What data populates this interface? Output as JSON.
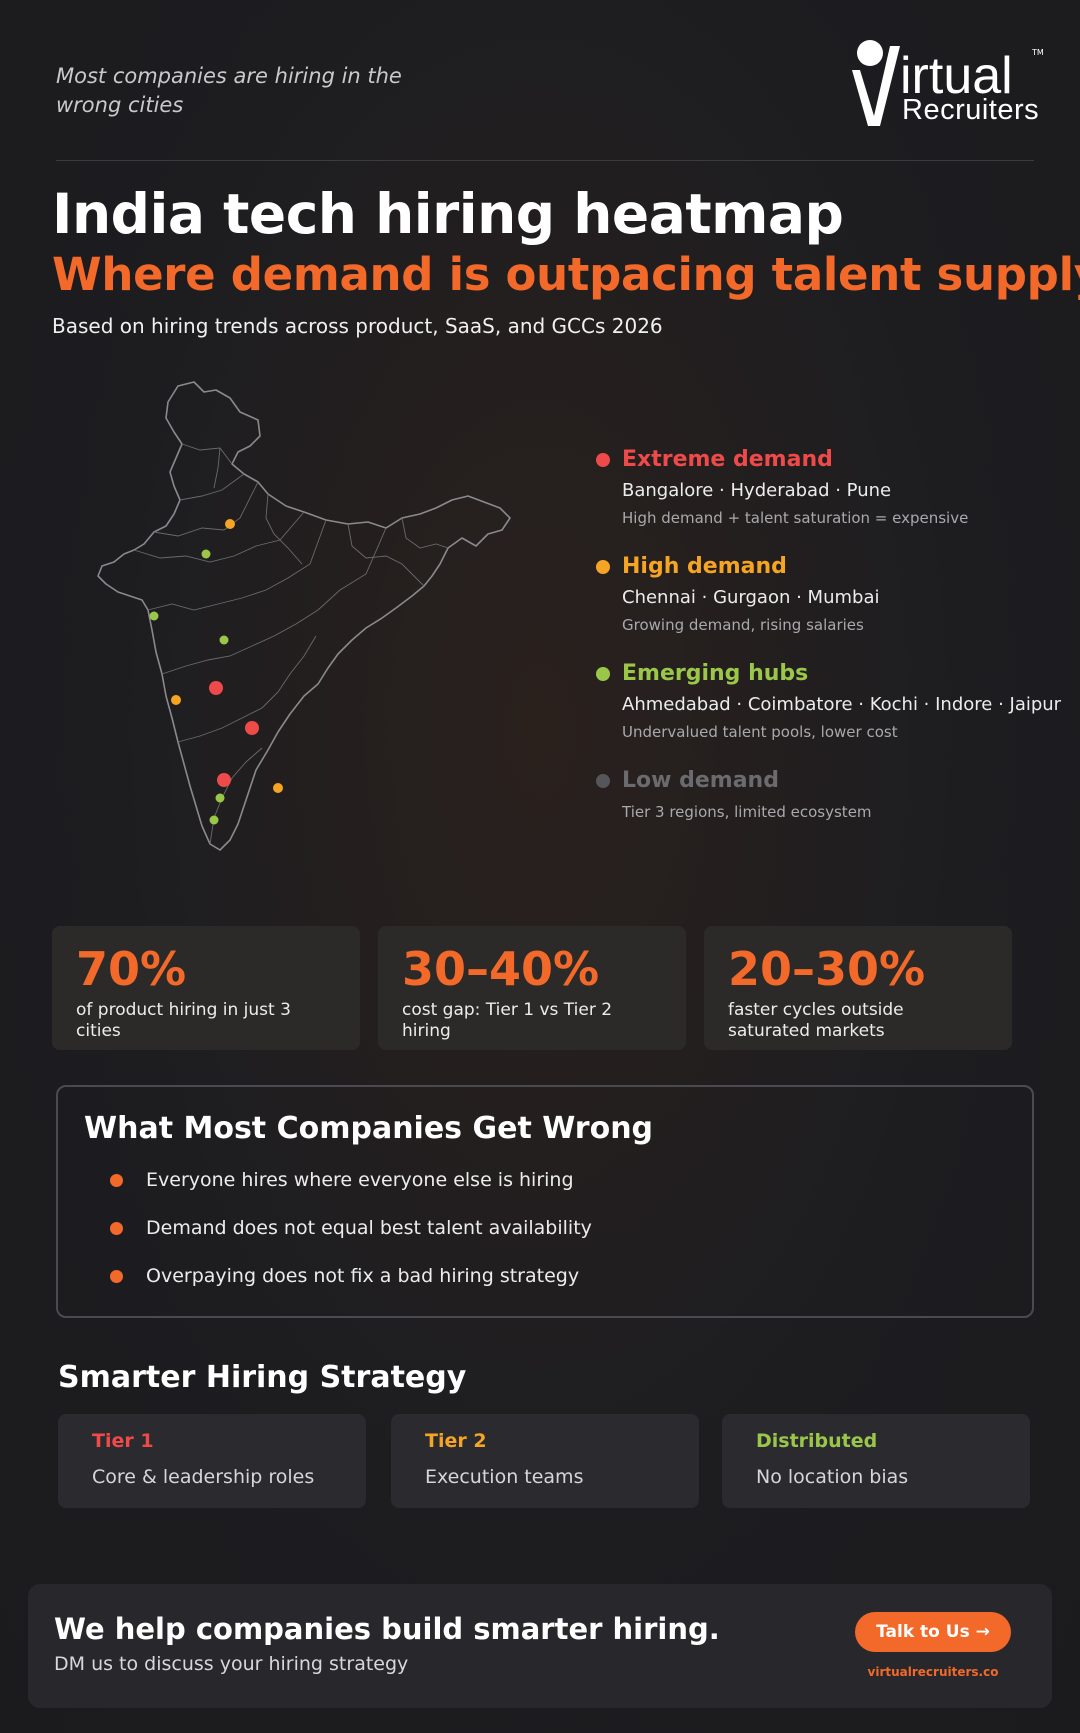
{
  "header": {
    "tagline": "Most companies are hiring in the wrong cities",
    "logo_brand": "irtual",
    "logo_sub": "Recruiters",
    "logo_tm": "TM"
  },
  "hero": {
    "title": "India tech hiring heatmap",
    "subtitle": "Where demand is outpacing talent supply",
    "basis": "Based on hiring trends across product, SaaS, and GCCs 2026"
  },
  "legend": [
    {
      "title": "Extreme demand",
      "cities": "Bangalore · Hyderabad · Pune",
      "note": "High demand + talent saturation = expensive",
      "color": "#ef4a4a"
    },
    {
      "title": "High demand",
      "cities": "Chennai · Gurgaon · Mumbai",
      "note": "Growing demand, rising salaries",
      "color": "#f5a523"
    },
    {
      "title": "Emerging hubs",
      "cities": "Ahmedabad · Coimbatore · Kochi · Indore · Jaipur",
      "note": "Undervalued talent pools, lower cost",
      "color": "#9ac74a"
    },
    {
      "title": "Low demand",
      "cities": "",
      "note": "Tier 3 regions, limited ecosystem",
      "color": "#55555a"
    }
  ],
  "stats": [
    {
      "value": "70%",
      "label": "of product hiring in just 3 cities"
    },
    {
      "value": "30–40%",
      "label": "cost gap: Tier 1 vs Tier 2 hiring"
    },
    {
      "value": "20–30%",
      "label": "faster cycles outside saturated markets"
    }
  ],
  "wrong": {
    "title": "What Most Companies Get Wrong",
    "items": [
      "Everyone hires where everyone else is hiring",
      "Demand does not equal best talent availability",
      "Overpaying does not fix a bad hiring strategy"
    ]
  },
  "strategy": {
    "title": "Smarter Hiring Strategy",
    "tiers": [
      {
        "name": "Tier 1",
        "desc": "Core & leadership roles",
        "color": "#ef4a4a"
      },
      {
        "name": "Tier 2",
        "desc": "Execution teams",
        "color": "#f5a523"
      },
      {
        "name": "Distributed",
        "desc": "No location bias",
        "color": "#9ac74a"
      }
    ]
  },
  "cta": {
    "title": "We help companies build smarter hiring.",
    "subtitle": "DM us to discuss your hiring strategy",
    "button": "Talk to Us →",
    "url": "virtualrecruiters.co"
  },
  "colors": {
    "accent": "#f2692a",
    "extreme": "#ef4a4a",
    "high": "#f5a523",
    "emerging": "#9ac74a",
    "low": "#55555a"
  }
}
